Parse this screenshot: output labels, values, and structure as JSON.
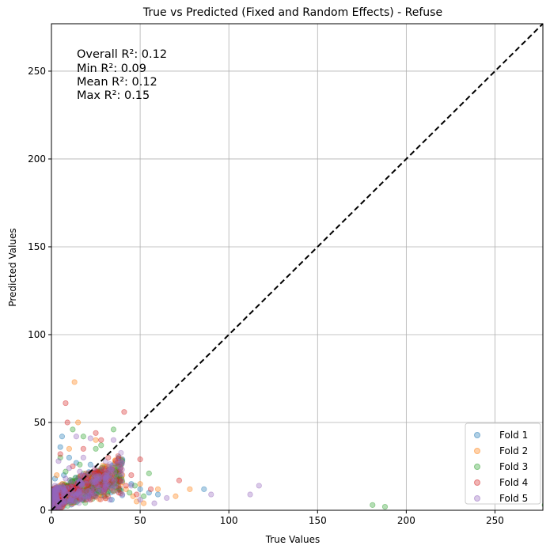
{
  "chart_data": {
    "type": "scatter",
    "title": "True vs Predicted (Fixed and Random Effects) - Refuse",
    "xlabel": "True Values",
    "ylabel": "Predicted Values",
    "xlim": [
      0,
      277
    ],
    "ylim": [
      0,
      277
    ],
    "x_ticks": [
      0,
      50,
      100,
      150,
      200,
      250
    ],
    "y_ticks": [
      0,
      50,
      100,
      150,
      200,
      250
    ],
    "x_tick_labels": [
      "0",
      "50",
      "100",
      "150",
      "200",
      "250"
    ],
    "y_tick_labels": [
      "0",
      "50",
      "100",
      "150",
      "200",
      "250"
    ],
    "grid": true,
    "legend_position": "bottom-right",
    "reference_line": {
      "style": "dashed",
      "color": "#000000",
      "from": [
        0,
        0
      ],
      "to": [
        277,
        277
      ]
    },
    "annotations": [
      "Overall R²: 0.12",
      "Min R²: 0.09",
      "Mean R²: 0.12",
      "Max R²: 0.15"
    ],
    "series": [
      {
        "name": "Fold 1",
        "color": "#1f77b4",
        "points": [
          [
            6,
            42
          ],
          [
            5,
            36
          ],
          [
            10,
            30
          ],
          [
            14,
            27
          ],
          [
            22,
            26
          ],
          [
            28,
            22
          ],
          [
            38,
            25
          ],
          [
            40,
            29
          ],
          [
            45,
            15
          ],
          [
            50,
            12
          ],
          [
            55,
            10
          ],
          [
            60,
            9
          ],
          [
            86,
            12
          ],
          [
            2,
            18
          ],
          [
            4,
            12
          ],
          [
            8,
            8
          ],
          [
            12,
            10
          ],
          [
            16,
            14
          ],
          [
            18,
            6
          ],
          [
            20,
            9
          ],
          [
            24,
            12
          ],
          [
            30,
            8
          ],
          [
            34,
            6
          ],
          [
            3,
            4
          ],
          [
            7,
            20
          ],
          [
            11,
            16
          ],
          [
            26,
            14
          ],
          [
            33,
            18
          ]
        ]
      },
      {
        "name": "Fold 2",
        "color": "#ff7f0e",
        "points": [
          [
            13,
            73
          ],
          [
            15,
            50
          ],
          [
            10,
            35
          ],
          [
            25,
            40
          ],
          [
            30,
            25
          ],
          [
            20,
            20
          ],
          [
            40,
            20
          ],
          [
            50,
            15
          ],
          [
            60,
            12
          ],
          [
            70,
            8
          ],
          [
            78,
            12
          ],
          [
            48,
            5
          ],
          [
            52,
            4
          ],
          [
            3,
            20
          ],
          [
            6,
            15
          ],
          [
            9,
            10
          ],
          [
            17,
            18
          ],
          [
            22,
            14
          ],
          [
            27,
            9
          ],
          [
            35,
            11
          ],
          [
            42,
            12
          ],
          [
            4,
            6
          ],
          [
            12,
            4
          ],
          [
            32,
            21
          ],
          [
            46,
            8
          ]
        ]
      },
      {
        "name": "Fold 3",
        "color": "#2ca02c",
        "points": [
          [
            12,
            46
          ],
          [
            35,
            46
          ],
          [
            18,
            42
          ],
          [
            28,
            37
          ],
          [
            25,
            35
          ],
          [
            40,
            28
          ],
          [
            55,
            21
          ],
          [
            47,
            14
          ],
          [
            181,
            3
          ],
          [
            188,
            2
          ],
          [
            278,
            3
          ],
          [
            5,
            30
          ],
          [
            8,
            22
          ],
          [
            15,
            18
          ],
          [
            20,
            12
          ],
          [
            30,
            15
          ],
          [
            36,
            22
          ],
          [
            44,
            10
          ],
          [
            52,
            8
          ],
          [
            2,
            10
          ],
          [
            10,
            6
          ],
          [
            24,
            20
          ],
          [
            38,
            12
          ],
          [
            16,
            26
          ]
        ]
      },
      {
        "name": "Fold 4",
        "color": "#d62728",
        "points": [
          [
            8,
            61
          ],
          [
            9,
            50
          ],
          [
            41,
            56
          ],
          [
            25,
            44
          ],
          [
            28,
            40
          ],
          [
            18,
            35
          ],
          [
            32,
            30
          ],
          [
            50,
            29
          ],
          [
            45,
            20
          ],
          [
            72,
            17
          ],
          [
            5,
            32
          ],
          [
            12,
            25
          ],
          [
            20,
            18
          ],
          [
            26,
            22
          ],
          [
            34,
            16
          ],
          [
            38,
            10
          ],
          [
            42,
            14
          ],
          [
            56,
            12
          ],
          [
            3,
            8
          ],
          [
            7,
            14
          ],
          [
            14,
            9
          ],
          [
            22,
            6
          ],
          [
            30,
            12
          ],
          [
            48,
            9
          ]
        ]
      },
      {
        "name": "Fold 5",
        "color": "#9467bd",
        "points": [
          [
            14,
            42
          ],
          [
            22,
            41
          ],
          [
            35,
            40
          ],
          [
            30,
            20
          ],
          [
            45,
            14
          ],
          [
            65,
            7
          ],
          [
            90,
            9
          ],
          [
            112,
            9
          ],
          [
            117,
            14
          ],
          [
            4,
            28
          ],
          [
            8,
            18
          ],
          [
            12,
            12
          ],
          [
            16,
            22
          ],
          [
            20,
            8
          ],
          [
            24,
            16
          ],
          [
            28,
            11
          ],
          [
            33,
            6
          ],
          [
            40,
            9
          ],
          [
            50,
            6
          ],
          [
            58,
            4
          ],
          [
            2,
            14
          ],
          [
            6,
            5
          ],
          [
            10,
            24
          ],
          [
            18,
            30
          ],
          [
            36,
            14
          ]
        ]
      }
    ]
  }
}
